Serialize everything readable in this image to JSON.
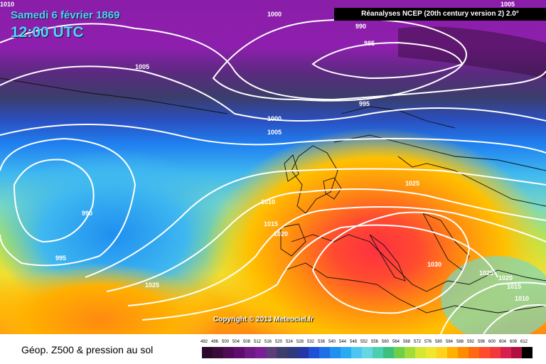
{
  "header": {
    "date": "Samedi 6 février 1869",
    "time": "12:00 UTC",
    "source": "Réanalyses NCEP (20th century version 2) 2.0°"
  },
  "map": {
    "copyright": "Copyright © 2013 Meteociel.fr",
    "isobar_labels": [
      "1010",
      "1000",
      "990",
      "985",
      "1005",
      "995",
      "1000",
      "1005",
      "1025",
      "990",
      "1010",
      "1015",
      "1020",
      "995",
      "1025",
      "1030",
      "1025",
      "1020",
      "1015",
      "1010",
      "1005"
    ]
  },
  "footer": {
    "title": "Géop. Z500 & pression au sol"
  },
  "scale": {
    "labels": [
      "492",
      "496",
      "500",
      "504",
      "508",
      "512",
      "516",
      "520",
      "524",
      "528",
      "532",
      "536",
      "540",
      "544",
      "548",
      "552",
      "556",
      "560",
      "564",
      "568",
      "572",
      "576",
      "580",
      "584",
      "588",
      "592",
      "596",
      "600",
      "604",
      "608",
      "612"
    ],
    "colors": [
      "#2a0a2a",
      "#3b0b3b",
      "#4e0c55",
      "#600c6e",
      "#6d1a82",
      "#7a1e96",
      "#5a3d7a",
      "#3b3d6b",
      "#30397a",
      "#2537a5",
      "#1f4fd6",
      "#1f6fe6",
      "#1f8ff0",
      "#2aaaf2",
      "#4cc6f0",
      "#66d6e0",
      "#4ad0b0",
      "#3cc080",
      "#6cd04a",
      "#a0dc3a",
      "#d6e632",
      "#f0e632",
      "#ffd21e",
      "#ffb000",
      "#ff8c00",
      "#ff6a10",
      "#ff4a30",
      "#f03a3a",
      "#d82050",
      "#b01040",
      "#000000"
    ]
  }
}
